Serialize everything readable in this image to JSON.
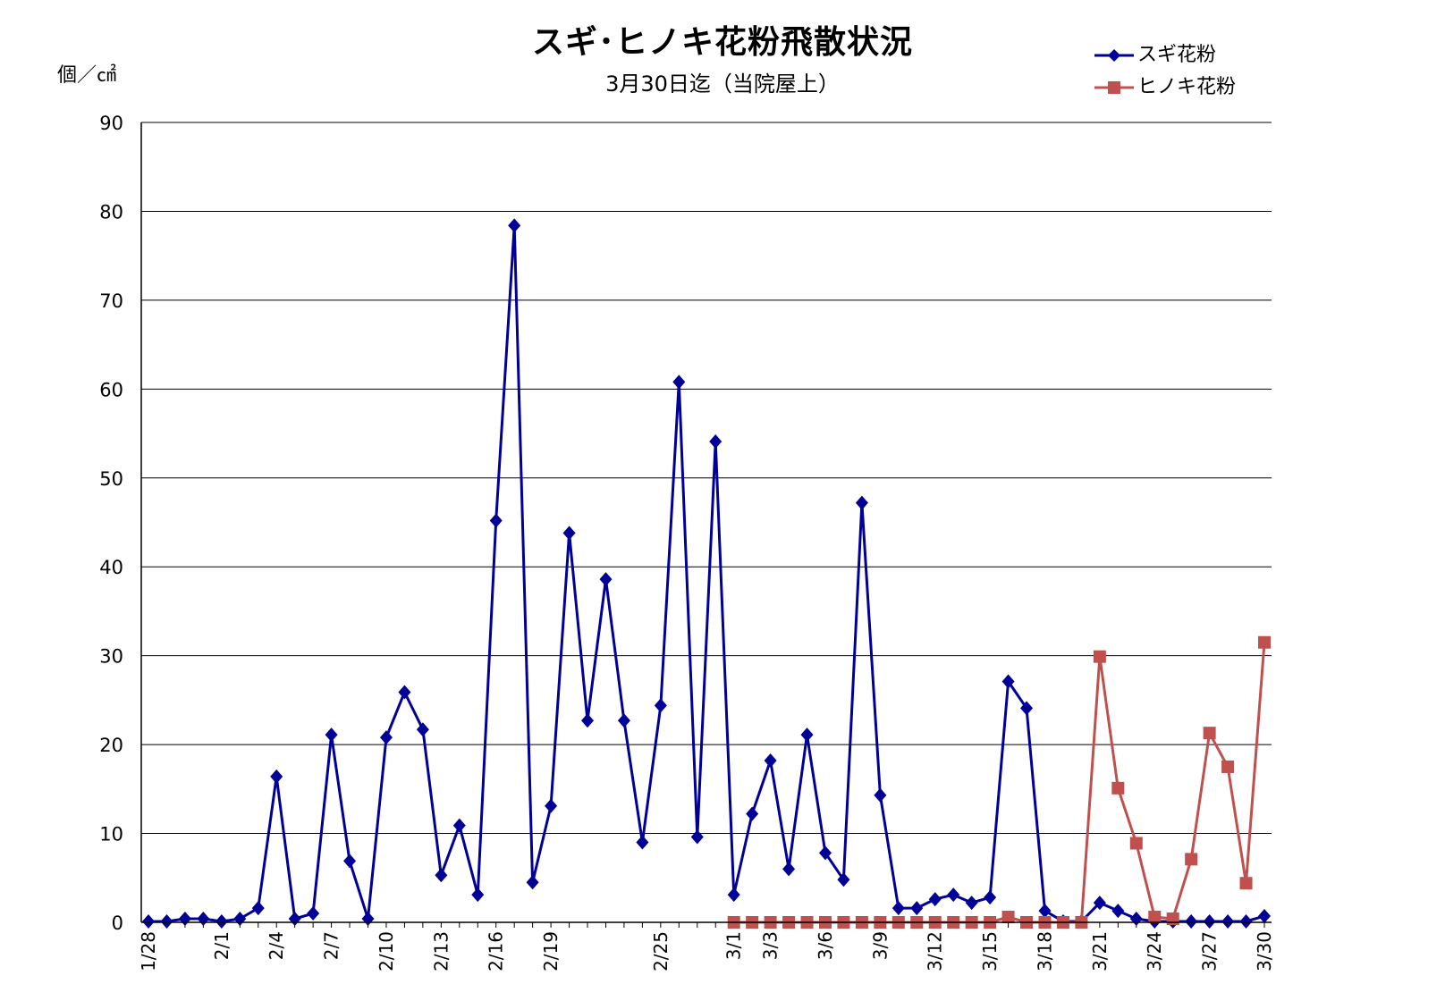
{
  "chart_data": {
    "type": "line",
    "title": "スギ･ヒノキ花粉飛散状況",
    "subtitle": "3月30日迄（当院屋上）",
    "ylabel": "個／㎠",
    "ylim": [
      0,
      90
    ],
    "yticks": [
      0,
      10,
      20,
      30,
      40,
      50,
      60,
      70,
      80,
      90
    ],
    "grid": true,
    "legend_position": "top-right",
    "x_start": "1/28",
    "x_count": 62,
    "x_tick_labels": [
      {
        "index": 0,
        "label": "1/28"
      },
      {
        "index": 4,
        "label": "2/1"
      },
      {
        "index": 7,
        "label": "2/4"
      },
      {
        "index": 10,
        "label": "2/7"
      },
      {
        "index": 13,
        "label": "2/10"
      },
      {
        "index": 16,
        "label": "2/13"
      },
      {
        "index": 19,
        "label": "2/16"
      },
      {
        "index": 22,
        "label": "2/19"
      },
      {
        "index": 28,
        "label": "2/25"
      },
      {
        "index": 32,
        "label": "3/1"
      },
      {
        "index": 34,
        "label": "3/3"
      },
      {
        "index": 37,
        "label": "3/6"
      },
      {
        "index": 40,
        "label": "3/9"
      },
      {
        "index": 43,
        "label": "3/12"
      },
      {
        "index": 46,
        "label": "3/15"
      },
      {
        "index": 49,
        "label": "3/18"
      },
      {
        "index": 52,
        "label": "3/21"
      },
      {
        "index": 55,
        "label": "3/24"
      },
      {
        "index": 58,
        "label": "3/27"
      },
      {
        "index": 61,
        "label": "3/30"
      }
    ],
    "series": [
      {
        "name": "スギ花粉",
        "color": "#000099",
        "marker": "diamond",
        "start_index": 0,
        "values": [
          0.1,
          0.1,
          0.4,
          0.4,
          0.1,
          0.4,
          1.6,
          16.4,
          0.4,
          1.0,
          21.1,
          6.9,
          0.4,
          20.8,
          25.9,
          21.7,
          5.3,
          10.9,
          3.1,
          45.2,
          78.4,
          4.5,
          13.1,
          43.8,
          22.7,
          38.6,
          22.7,
          9.0,
          24.4,
          60.8,
          9.6,
          54.1,
          3.1,
          12.2,
          18.2,
          6.0,
          21.1,
          7.8,
          4.8,
          47.2,
          14.3,
          1.6,
          1.6,
          2.6,
          3.1,
          2.2,
          2.8,
          27.1,
          24.1,
          1.3,
          0.1,
          0.1,
          2.2,
          1.3,
          0.4,
          0.1,
          0.1,
          0.1,
          0.1,
          0.1,
          0.1,
          0.7
        ]
      },
      {
        "name": "ヒノキ花粉",
        "color": "#c0504d",
        "marker": "square",
        "start_index": 32,
        "values": [
          0,
          0,
          0,
          0,
          0,
          0,
          0,
          0,
          0,
          0,
          0,
          0,
          0,
          0,
          0,
          0.6,
          0,
          0,
          0,
          0,
          29.9,
          15.1,
          8.9,
          0.6,
          0.4,
          7.1,
          21.3,
          17.5,
          4.4,
          31.5
        ]
      }
    ]
  }
}
